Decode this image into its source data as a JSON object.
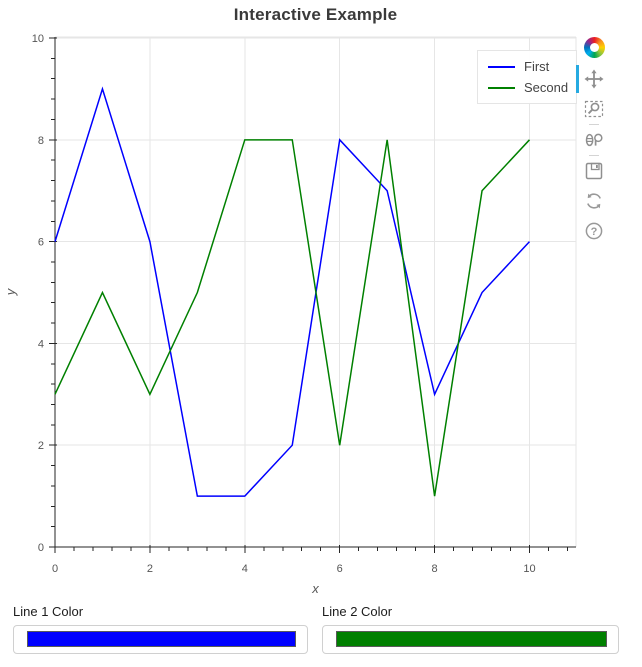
{
  "chart_data": {
    "type": "line",
    "title": "Interactive Example",
    "xlabel": "x",
    "ylabel": "y",
    "x": [
      0,
      1,
      2,
      3,
      4,
      5,
      6,
      7,
      8,
      9,
      10
    ],
    "series": [
      {
        "name": "First",
        "color": "#0000ff",
        "values": [
          6,
          9,
          6,
          1,
          1,
          2,
          8,
          7,
          3,
          5,
          6
        ]
      },
      {
        "name": "Second",
        "color": "#008000",
        "values": [
          3,
          5,
          3,
          5,
          8,
          8,
          2,
          8,
          1,
          7,
          8
        ]
      }
    ],
    "x_ticks": [
      0,
      2,
      4,
      6,
      8,
      10
    ],
    "y_ticks": [
      0,
      2,
      4,
      6,
      8,
      10
    ],
    "minor_tick_step": 0.4,
    "x_range": [
      0,
      10.98
    ],
    "y_range": [
      0,
      10.02
    ],
    "grid": true,
    "legend_position": "top_right",
    "colors": {
      "grid": "#e6e6e6",
      "outline": "#e5e5e5",
      "axis": "#262626",
      "tick_label": "#555555",
      "axis_label": "#555555",
      "title": "#3a3a3a"
    }
  },
  "toolbar": {
    "active_tool": "pan",
    "active_color": "#26aae1",
    "icon_color": "#8f8f8f",
    "tools": [
      "bokeh-logo",
      "pan",
      "box-zoom",
      "wheel-zoom",
      "save",
      "reset",
      "help"
    ]
  },
  "icons": {
    "help_glyph": "?"
  },
  "widgets": {
    "line1": {
      "label": "Line 1 Color",
      "color": "#0000ff"
    },
    "line2": {
      "label": "Line 2 Color",
      "color": "#008000"
    }
  }
}
